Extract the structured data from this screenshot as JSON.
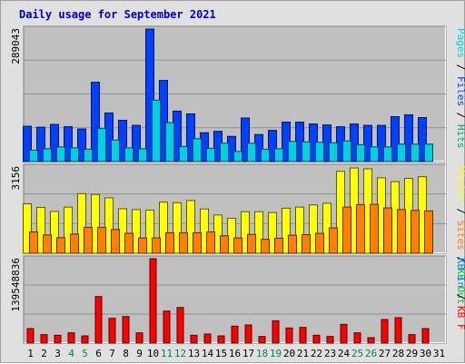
{
  "chart_data": {
    "type": "bar",
    "title": "Daily usage for September 2021",
    "categories": [
      "1",
      "2",
      "3",
      "4",
      "5",
      "6",
      "7",
      "8",
      "9",
      "10",
      "11",
      "12",
      "13",
      "14",
      "15",
      "16",
      "17",
      "18",
      "19",
      "20",
      "21",
      "22",
      "23",
      "24",
      "25",
      "26",
      "27",
      "28",
      "29",
      "30",
      "31"
    ],
    "weekend_days": [
      "4",
      "5",
      "11",
      "12",
      "18",
      "19",
      "25",
      "26"
    ],
    "colors": {
      "pages": "#00d0e0",
      "files": "#0040ff",
      "hits": "#00a080",
      "visits": "#ffff00",
      "sites": "#ff8000",
      "kbin": "#0080ff",
      "kbout": "#00c040",
      "kbf": "#ff0000",
      "plot_bg": "#c0c0c0",
      "title": "#0000c0",
      "weekend_tick": "#008060"
    },
    "panels": [
      {
        "id": "hits-panel",
        "ytick_label": "289043",
        "ymax": 289043,
        "legend": [
          {
            "text": "Pages",
            "color": "#00d0e0"
          },
          {
            "text": "Files",
            "color": "#0040ff"
          },
          {
            "text": "Hits",
            "color": "#00a080"
          }
        ],
        "series": [
          {
            "name": "Hits",
            "values": [
              77000,
              75000,
              81000,
              76000,
              71000,
              173000,
              106000,
              90000,
              79000,
              289043,
              177000,
              110000,
              104000,
              63000,
              66000,
              55000,
              95000,
              59000,
              68000,
              86000,
              86000,
              82000,
              80000,
              76000,
              82000,
              79000,
              79000,
              98000,
              102000,
              96000,
              0
            ],
            "color": "#00a080",
            "hidden": true
          },
          {
            "name": "Files",
            "values": [
              77000,
              75000,
              81000,
              76000,
              71000,
              173000,
              106000,
              90000,
              79000,
              289043,
              177000,
              110000,
              104000,
              63000,
              66000,
              55000,
              95000,
              59000,
              68000,
              86000,
              86000,
              82000,
              80000,
              76000,
              82000,
              79000,
              79000,
              98000,
              102000,
              96000,
              0
            ],
            "color": "#0040ff"
          },
          {
            "name": "Pages",
            "values": [
              25000,
              28000,
              32000,
              30000,
              27000,
              72000,
              47000,
              30000,
              28000,
              134000,
              85000,
              33000,
              50000,
              29000,
              40000,
              22000,
              40000,
              27000,
              28000,
              44000,
              43000,
              42000,
              41000,
              45000,
              37000,
              32000,
              32000,
              38000,
              38000,
              38000,
              0
            ],
            "color": "#00d0e0"
          }
        ]
      },
      {
        "id": "visits-panel",
        "ytick_label": "3156",
        "ymax": 3156,
        "legend": [
          {
            "text": "Visits",
            "color": "#ffff00"
          },
          {
            "text": "Sites",
            "color": "#ff8000"
          },
          {
            "text": "KB Out",
            "color": "#00c040"
          }
        ],
        "series": [
          {
            "name": "Visits",
            "values": [
              1810,
              1680,
              1530,
              1690,
              2180,
              2150,
              2030,
              1630,
              1600,
              1580,
              1870,
              1850,
              1930,
              1620,
              1400,
              1280,
              1520,
              1520,
              1490,
              1650,
              1690,
              1770,
              1830,
              3000,
              3120,
              3090,
              2760,
              2620,
              2740,
              2800,
              0
            ],
            "color": "#ffff00"
          },
          {
            "name": "Sites",
            "values": [
              780,
              670,
              570,
              700,
              950,
              950,
              870,
              730,
              560,
              560,
              750,
              750,
              750,
              780,
              640,
              560,
              690,
              510,
              550,
              660,
              680,
              730,
              930,
              1690,
              1780,
              1790,
              1660,
              1600,
              1570,
              1550,
              0
            ],
            "color": "#ff8000"
          }
        ]
      },
      {
        "id": "kbytes-panel",
        "ytick_label": "139548836",
        "ymax": 139548836,
        "legend": [
          {
            "text": "KB In",
            "color": "#0080ff"
          },
          {
            "text": "KB F",
            "color": "#ff0000"
          }
        ],
        "series": [
          {
            "name": "KB F",
            "values": [
              24000000,
              14000000,
              13000000,
              17000000,
              12000000,
              77000000,
              41000000,
              44000000,
              17000000,
              139548836,
              53000000,
              59000000,
              13000000,
              15000000,
              12000000,
              28000000,
              30000000,
              11000000,
              37000000,
              25000000,
              26000000,
              13000000,
              11000000,
              31000000,
              17000000,
              9000000,
              39000000,
              42000000,
              14000000,
              24000000,
              0
            ],
            "color": "#ff0000"
          }
        ]
      }
    ]
  }
}
